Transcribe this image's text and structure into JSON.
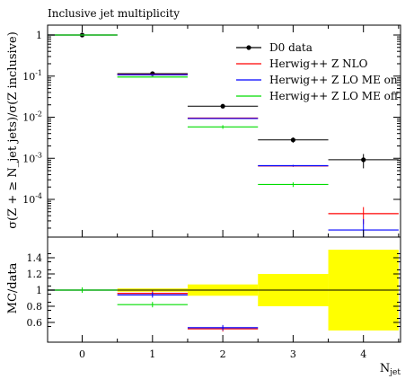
{
  "chart_data": {
    "type": "scatter",
    "title": "Inclusive jet multiplicity",
    "xlabel": "N_jet",
    "ylabel": "σ(Z + ≥ N_jet jets)/σ(Z inclusive)",
    "ratio_ylabel": "MC/data",
    "x_categories": [
      "0",
      "1",
      "2",
      "3",
      "4"
    ],
    "upper_y_scale": "log",
    "upper_y_ticks": [
      "1",
      "10^-1",
      "10^-2",
      "10^-3",
      "10^-4"
    ],
    "ratio_y_ticks": [
      "1.4",
      "1.2",
      "1",
      "0.8",
      "0.6"
    ],
    "ratio_ylim": [
      0.5,
      1.5
    ],
    "upper_ylim": [
      1.5e-05,
      2.2
    ],
    "legend_position": "top-right",
    "grid": false,
    "series": [
      {
        "name": "D0 data",
        "color": "#000000",
        "marker": "dot",
        "values": [
          1.0,
          0.115,
          0.0185,
          0.0028,
          0.00092
        ],
        "y_err": [
          0.0,
          0.01,
          0.0015,
          0.0004,
          0.00035
        ],
        "ratio_values": [
          1.0,
          1.0,
          1.0,
          1.0,
          1.0
        ],
        "ratio_band": [
          0.0,
          0.02,
          0.07,
          0.2,
          0.5
        ]
      },
      {
        "name": "Herwig++ Z NLO",
        "color": "#ff0000",
        "marker": "none",
        "values": [
          1.0,
          0.11,
          0.0095,
          0.00065,
          4.5e-05
        ],
        "y_err": [
          0.0,
          0.0,
          0.0,
          3e-05,
          2e-05
        ],
        "ratio_values": [
          1.0,
          0.96,
          0.52,
          null,
          null
        ]
      },
      {
        "name": "Herwig++ Z LO ME on",
        "color": "#0000ff",
        "marker": "none",
        "values": [
          1.0,
          0.108,
          0.0093,
          0.00066,
          1.8e-05
        ],
        "y_err": [
          0.0,
          0.0,
          0.0,
          3e-05,
          1.5e-05
        ],
        "ratio_values": [
          1.0,
          0.94,
          0.535,
          null,
          null
        ]
      },
      {
        "name": "Herwig++ Z LO ME off",
        "color": "#00dd00",
        "marker": "none",
        "values": [
          1.0,
          0.095,
          0.0058,
          0.00023,
          null
        ],
        "y_err": [
          0.0,
          0.0,
          0.0006,
          3e-05,
          null
        ],
        "ratio_values": [
          1.0,
          0.82,
          null,
          null,
          null
        ]
      }
    ]
  }
}
